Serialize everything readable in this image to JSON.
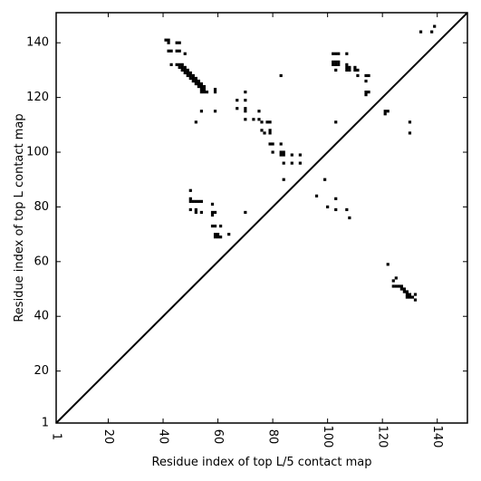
{
  "chart_data": {
    "type": "scatter",
    "title": "",
    "xlabel": "Residue index of top L/5 contact map",
    "ylabel": "Residue index of top L contact map",
    "xlim": [
      1,
      151
    ],
    "ylim": [
      1,
      151
    ],
    "x_ticks": [
      {
        "value": 1,
        "label": "1"
      },
      {
        "value": 20,
        "label": "20"
      },
      {
        "value": 40,
        "label": "40"
      },
      {
        "value": 60,
        "label": "60"
      },
      {
        "value": 80,
        "label": "80"
      },
      {
        "value": 100,
        "label": "100"
      },
      {
        "value": 120,
        "label": "120"
      },
      {
        "value": 140,
        "label": "140"
      }
    ],
    "y_ticks": [
      {
        "value": 1,
        "label": "1"
      },
      {
        "value": 20,
        "label": "20"
      },
      {
        "value": 40,
        "label": "40"
      },
      {
        "value": 60,
        "label": "60"
      },
      {
        "value": 80,
        "label": "80"
      },
      {
        "value": 100,
        "label": "100"
      },
      {
        "value": 120,
        "label": "120"
      },
      {
        "value": 140,
        "label": "140"
      }
    ],
    "diagonal": [
      [
        1,
        1
      ],
      [
        151,
        151
      ]
    ],
    "grid": false,
    "marker_color": "#000000",
    "series": [
      {
        "points": [
          [
            41,
            141
          ],
          [
            42,
            141
          ],
          [
            42,
            140
          ],
          [
            45,
            140
          ],
          [
            46,
            140
          ],
          [
            42,
            137
          ],
          [
            43,
            137
          ],
          [
            45,
            137
          ],
          [
            46,
            137
          ],
          [
            48,
            136
          ],
          [
            43,
            132
          ],
          [
            45,
            132
          ],
          [
            46,
            132
          ],
          [
            46,
            131
          ],
          [
            47,
            131
          ],
          [
            47,
            130
          ],
          [
            48,
            130
          ],
          [
            48,
            129
          ],
          [
            49,
            129
          ],
          [
            49,
            128
          ],
          [
            50,
            128
          ],
          [
            50,
            127
          ],
          [
            51,
            127
          ],
          [
            51,
            126
          ],
          [
            52,
            126
          ],
          [
            52,
            125
          ],
          [
            53,
            125
          ],
          [
            53,
            124
          ],
          [
            54,
            124
          ],
          [
            54,
            123
          ],
          [
            55,
            123
          ],
          [
            55,
            122
          ],
          [
            56,
            122
          ],
          [
            47,
            132
          ],
          [
            48,
            131
          ],
          [
            49,
            130
          ],
          [
            50,
            129
          ],
          [
            51,
            128
          ],
          [
            52,
            127
          ],
          [
            53,
            126
          ],
          [
            54,
            125
          ],
          [
            55,
            124
          ],
          [
            54,
            122
          ],
          [
            59,
            123
          ],
          [
            59,
            122
          ],
          [
            52,
            111
          ],
          [
            54,
            115
          ],
          [
            59,
            115
          ],
          [
            67,
            119
          ],
          [
            67,
            116
          ],
          [
            70,
            122
          ],
          [
            70,
            119
          ],
          [
            70,
            116
          ],
          [
            70,
            115
          ],
          [
            70,
            112
          ],
          [
            73,
            112
          ],
          [
            75,
            115
          ],
          [
            75,
            112
          ],
          [
            76,
            111
          ],
          [
            76,
            108
          ],
          [
            77,
            107
          ],
          [
            78,
            111
          ],
          [
            79,
            111
          ],
          [
            79,
            108
          ],
          [
            79,
            107
          ],
          [
            79,
            103
          ],
          [
            80,
            103
          ],
          [
            80,
            100
          ],
          [
            83,
            103
          ],
          [
            83,
            100
          ],
          [
            83,
            99
          ],
          [
            84,
            100
          ],
          [
            84,
            99
          ],
          [
            84,
            96
          ],
          [
            84,
            90
          ],
          [
            87,
            99
          ],
          [
            87,
            96
          ],
          [
            90,
            99
          ],
          [
            90,
            96
          ],
          [
            83,
            128
          ],
          [
            96,
            84
          ],
          [
            99,
            90
          ],
          [
            100,
            80
          ],
          [
            103,
            83
          ],
          [
            103,
            79
          ],
          [
            107,
            79
          ],
          [
            108,
            76
          ],
          [
            50,
            86
          ],
          [
            50,
            83
          ],
          [
            50,
            82
          ],
          [
            51,
            82
          ],
          [
            52,
            82
          ],
          [
            53,
            82
          ],
          [
            54,
            82
          ],
          [
            50,
            79
          ],
          [
            52,
            79
          ],
          [
            52,
            78
          ],
          [
            54,
            78
          ],
          [
            58,
            81
          ],
          [
            58,
            78
          ],
          [
            59,
            78
          ],
          [
            58,
            77
          ],
          [
            58,
            73
          ],
          [
            59,
            73
          ],
          [
            61,
            73
          ],
          [
            59,
            70
          ],
          [
            60,
            70
          ],
          [
            59,
            69
          ],
          [
            60,
            69
          ],
          [
            61,
            69
          ],
          [
            64,
            70
          ],
          [
            70,
            78
          ],
          [
            102,
            136
          ],
          [
            103,
            136
          ],
          [
            104,
            136
          ],
          [
            107,
            136
          ],
          [
            102,
            133
          ],
          [
            103,
            133
          ],
          [
            104,
            133
          ],
          [
            102,
            132
          ],
          [
            103,
            132
          ],
          [
            104,
            132
          ],
          [
            103,
            130
          ],
          [
            107,
            132
          ],
          [
            107,
            131
          ],
          [
            108,
            131
          ],
          [
            107,
            130
          ],
          [
            108,
            130
          ],
          [
            110,
            131
          ],
          [
            110,
            130
          ],
          [
            111,
            130
          ],
          [
            111,
            128
          ],
          [
            114,
            128
          ],
          [
            115,
            128
          ],
          [
            114,
            126
          ],
          [
            114,
            122
          ],
          [
            115,
            122
          ],
          [
            114,
            121
          ],
          [
            103,
            111
          ],
          [
            121,
            115
          ],
          [
            122,
            115
          ],
          [
            121,
            114
          ],
          [
            130,
            111
          ],
          [
            130,
            107
          ],
          [
            134,
            144
          ],
          [
            138,
            144
          ],
          [
            139,
            146
          ],
          [
            122,
            59
          ],
          [
            125,
            54
          ],
          [
            124,
            53
          ],
          [
            124,
            51
          ],
          [
            125,
            51
          ],
          [
            126,
            51
          ],
          [
            127,
            51
          ],
          [
            127,
            50
          ],
          [
            128,
            50
          ],
          [
            128,
            49
          ],
          [
            129,
            49
          ],
          [
            129,
            48
          ],
          [
            130,
            48
          ],
          [
            130,
            47
          ],
          [
            131,
            47
          ],
          [
            132,
            48
          ],
          [
            132,
            46
          ],
          [
            129,
            47
          ]
        ]
      }
    ]
  }
}
